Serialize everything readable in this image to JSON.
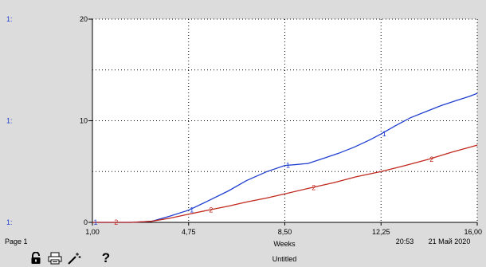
{
  "chart_data": {
    "type": "line",
    "xlabel": "Weeks",
    "xlim": [
      1.0,
      16.0
    ],
    "ylim": [
      0,
      20
    ],
    "x_ticks": [
      "1,00",
      "4,75",
      "8,50",
      "12,25",
      "16,00"
    ],
    "y_ticks": [
      "20",
      "10",
      "0"
    ],
    "y_axis_prefix": [
      "1:",
      "1:",
      "1:"
    ],
    "grid": true,
    "series": [
      {
        "name": "1",
        "color": "#1f3fd0",
        "x": [
          1.0,
          1.8,
          2.5,
          3.3,
          4.0,
          4.75,
          5.5,
          6.3,
          7.0,
          7.8,
          8.5,
          9.0,
          9.4,
          10.0,
          10.6,
          11.2,
          11.8,
          12.25,
          12.8,
          13.4,
          14.0,
          14.6,
          15.2,
          15.7,
          16.0
        ],
        "y": [
          0.0,
          0.0,
          0.0,
          0.1,
          0.6,
          1.2,
          2.1,
          3.1,
          4.1,
          5.0,
          5.6,
          5.7,
          5.8,
          6.3,
          6.8,
          7.4,
          8.1,
          8.7,
          9.5,
          10.3,
          10.9,
          11.5,
          12.0,
          12.4,
          12.7
        ]
      },
      {
        "name": "2",
        "color": "#c0281e",
        "x": [
          1.0,
          1.8,
          2.5,
          3.3,
          4.0,
          4.75,
          5.5,
          6.3,
          7.0,
          7.8,
          8.5,
          9.5,
          10.4,
          11.3,
          12.25,
          13.2,
          14.1,
          15.0,
          16.0
        ],
        "y": [
          0.0,
          0.0,
          0.0,
          0.1,
          0.4,
          0.8,
          1.2,
          1.6,
          2.0,
          2.4,
          2.8,
          3.4,
          3.9,
          4.5,
          5.0,
          5.6,
          6.2,
          6.9,
          7.6
        ]
      }
    ],
    "label_points": [
      {
        "series": 0,
        "x": 1.0,
        "text": "1"
      },
      {
        "series": 0,
        "x": 4.75,
        "text": "1"
      },
      {
        "series": 0,
        "x": 8.5,
        "text": "1"
      },
      {
        "series": 0,
        "x": 12.25,
        "text": "1"
      },
      {
        "series": 1,
        "x": 1.8,
        "text": "2"
      },
      {
        "series": 1,
        "x": 5.5,
        "text": "2"
      },
      {
        "series": 1,
        "x": 9.5,
        "text": "2"
      },
      {
        "series": 1,
        "x": 14.1,
        "text": "2"
      }
    ]
  },
  "footer": {
    "page_label": "Page 1",
    "time": "20:53",
    "date": "21 Май 2020",
    "title": "Untitled"
  },
  "toolbar": {
    "icons": [
      "lock-icon",
      "print-icon",
      "magic-wand-icon",
      "help-icon"
    ],
    "help_glyph": "?"
  }
}
